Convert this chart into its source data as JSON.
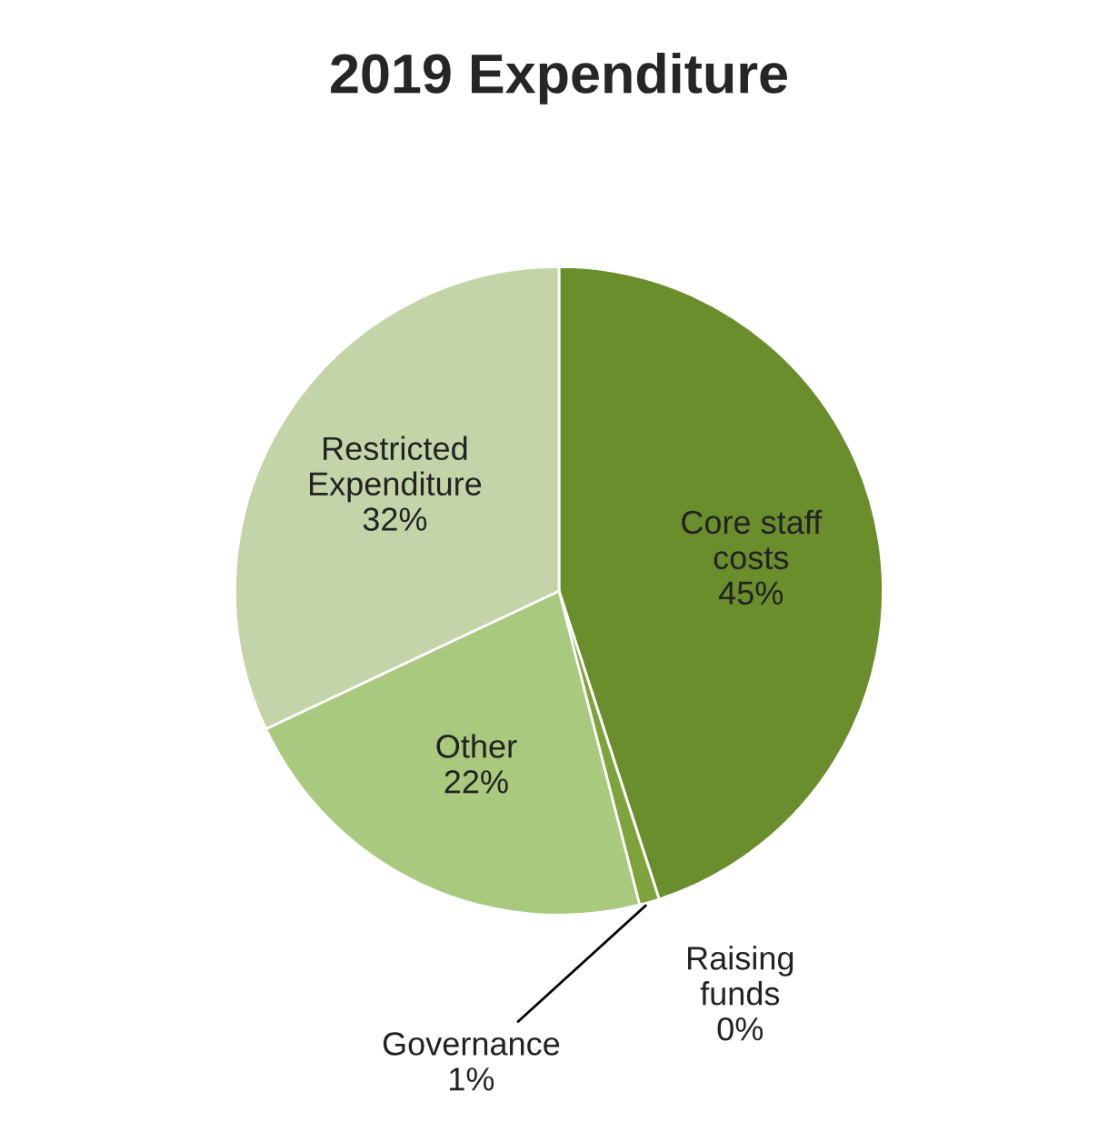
{
  "chart_data": {
    "type": "pie",
    "title": "2019 Expenditure",
    "categories": [
      "Core staff costs",
      "Raising funds",
      "Governance",
      "Other",
      "Restricted Expenditure"
    ],
    "values": [
      45,
      0,
      1,
      22,
      32
    ],
    "colors": [
      "#6a8e2c",
      "#5f7f24",
      "#7fa33c",
      "#a8c97e",
      "#c2d4a8"
    ],
    "value_labels": [
      "45%",
      "0%",
      "1%",
      "22%",
      "32%"
    ],
    "legend": false
  }
}
